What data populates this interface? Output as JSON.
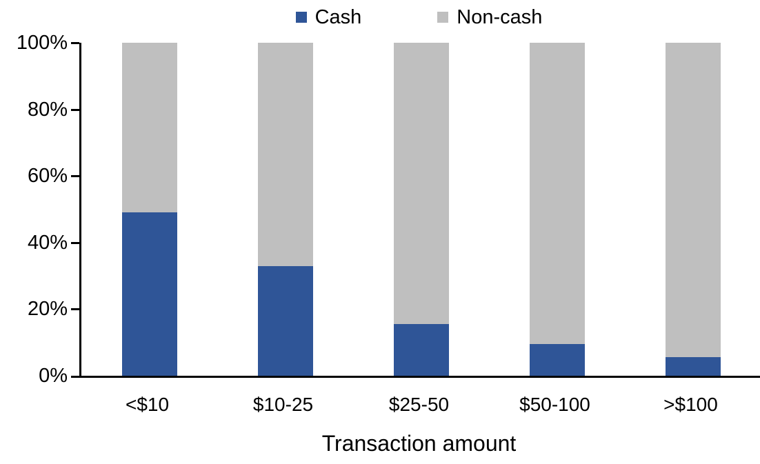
{
  "chart_data": {
    "type": "bar",
    "stacked": true,
    "orientation": "vertical",
    "categories": [
      "<$10",
      "$10-25",
      "$25-50",
      "$50-100",
      ">$100"
    ],
    "series": [
      {
        "name": "Cash",
        "color": "#2F5597",
        "values": [
          49,
          33,
          15.5,
          9.5,
          5.5
        ]
      },
      {
        "name": "Non-cash",
        "color": "#BFBFBF",
        "values": [
          51,
          67,
          84.5,
          90.5,
          94.5
        ]
      }
    ],
    "xlabel": "Transaction amount",
    "ylabel": "",
    "ylim": [
      0,
      100
    ],
    "yticks": [
      "0%",
      "20%",
      "40%",
      "60%",
      "80%",
      "100%"
    ],
    "legend_position": "top-center",
    "grid": false,
    "axis_color": "#000000",
    "background_color": "#FFFFFF"
  }
}
